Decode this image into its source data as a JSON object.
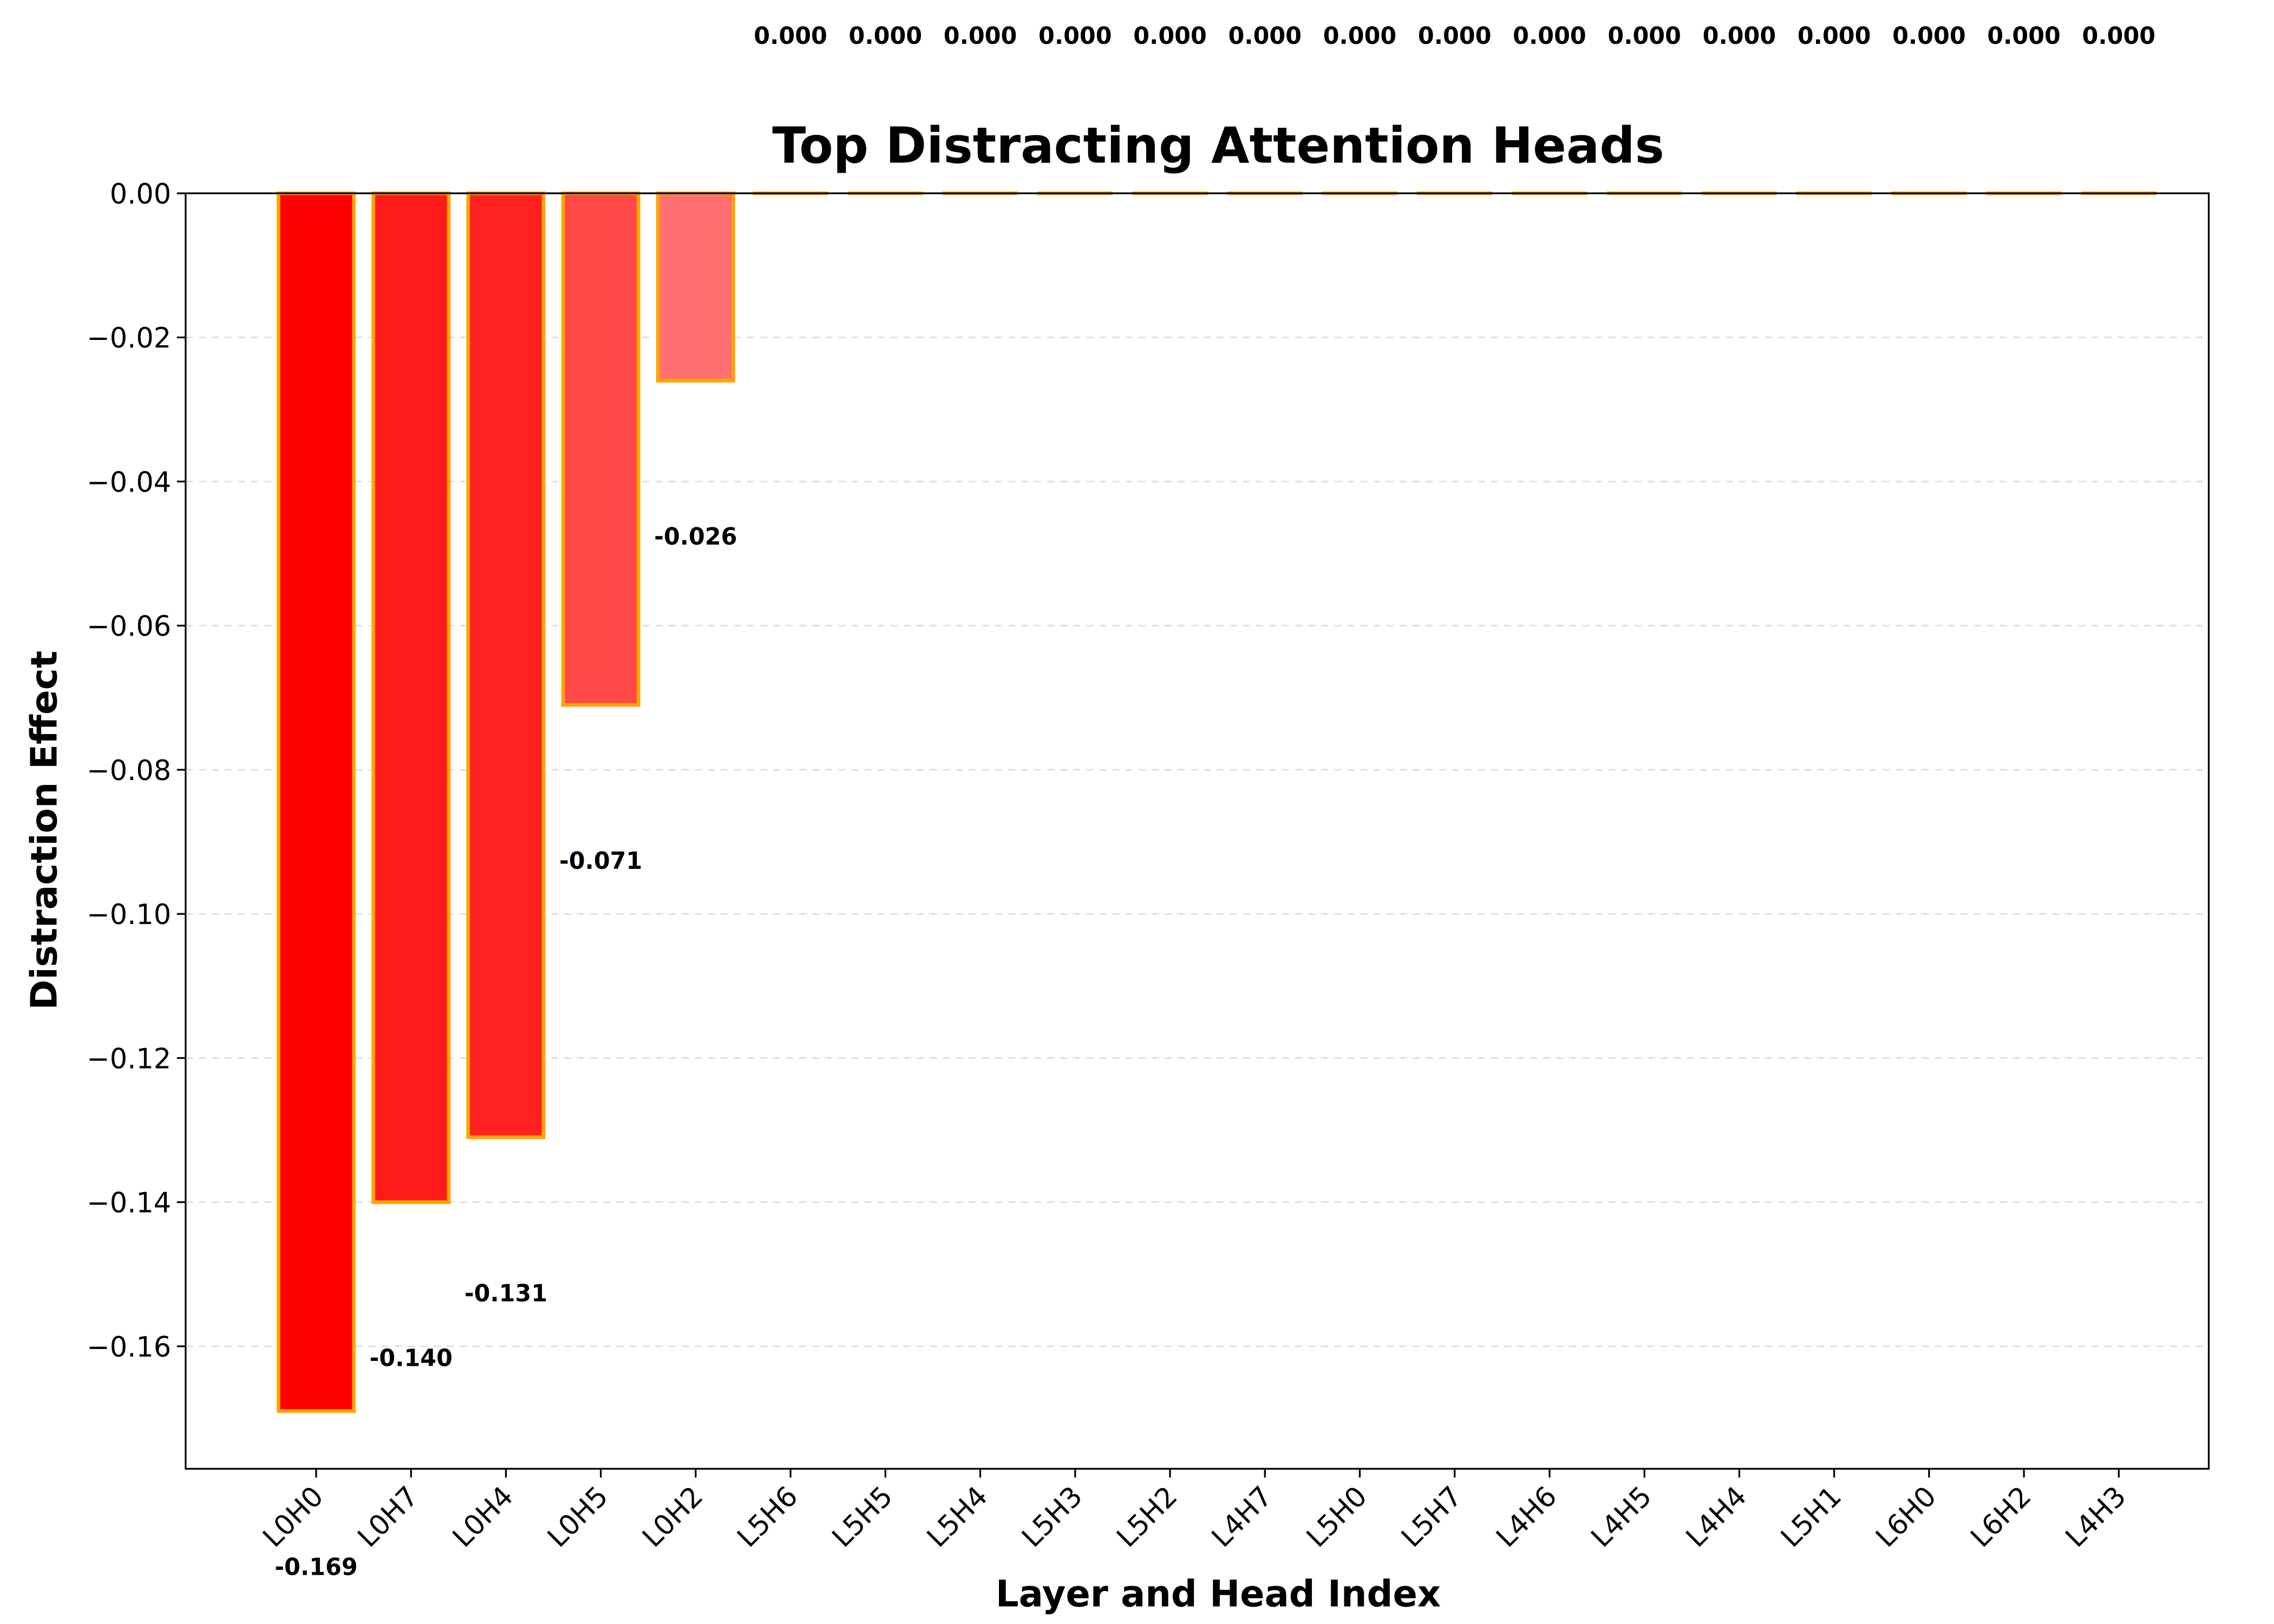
{
  "chart_data": {
    "type": "bar",
    "title": "Top Distracting Attention Heads",
    "xlabel": "Layer and Head Index",
    "ylabel": "Distraction Effect",
    "categories": [
      "L0H0",
      "L0H7",
      "L0H4",
      "L0H5",
      "L0H2",
      "L5H6",
      "L5H5",
      "L5H4",
      "L5H3",
      "L5H2",
      "L4H7",
      "L5H0",
      "L5H7",
      "L4H6",
      "L4H5",
      "L4H4",
      "L5H1",
      "L6H0",
      "L6H2",
      "L4H3"
    ],
    "values": [
      -0.169,
      -0.14,
      -0.131,
      -0.071,
      -0.026,
      0,
      0,
      0,
      0,
      0,
      0,
      0,
      0,
      0,
      0,
      0,
      0,
      0,
      0,
      0
    ],
    "value_labels": [
      "-0.169",
      "-0.140",
      "-0.131",
      "-0.071",
      "-0.026",
      "0.000",
      "0.000",
      "0.000",
      "0.000",
      "0.000",
      "0.000",
      "0.000",
      "0.000",
      "0.000",
      "0.000",
      "0.000",
      "0.000",
      "0.000",
      "0.000",
      "0.000"
    ],
    "colors": [
      "#ff0000",
      "#ff1a1a",
      "#ff2020",
      "#ff4848",
      "#ff7070",
      "#ffffff",
      "#ffffff",
      "#ffffff",
      "#ffffff",
      "#ffffff",
      "#ffffff",
      "#ffffff",
      "#ffffff",
      "#ffffff",
      "#ffffff",
      "#ffffff",
      "#ffffff",
      "#ffffff",
      "#ffffff",
      "#ffffff"
    ],
    "edgecolor": "#ffa500",
    "ylim": [
      -0.177,
      0
    ],
    "yticks": [
      {
        "value": 0,
        "label": "0.00"
      },
      {
        "value": -0.02,
        "label": "−0.02"
      },
      {
        "value": -0.04,
        "label": "−0.04"
      },
      {
        "value": -0.06,
        "label": "−0.06"
      },
      {
        "value": -0.08,
        "label": "−0.08"
      },
      {
        "value": -0.1,
        "label": "−0.10"
      },
      {
        "value": -0.12,
        "label": "−0.12"
      },
      {
        "value": -0.14,
        "label": "−0.14"
      },
      {
        "value": -0.16,
        "label": "−0.16"
      }
    ],
    "grid": true
  }
}
